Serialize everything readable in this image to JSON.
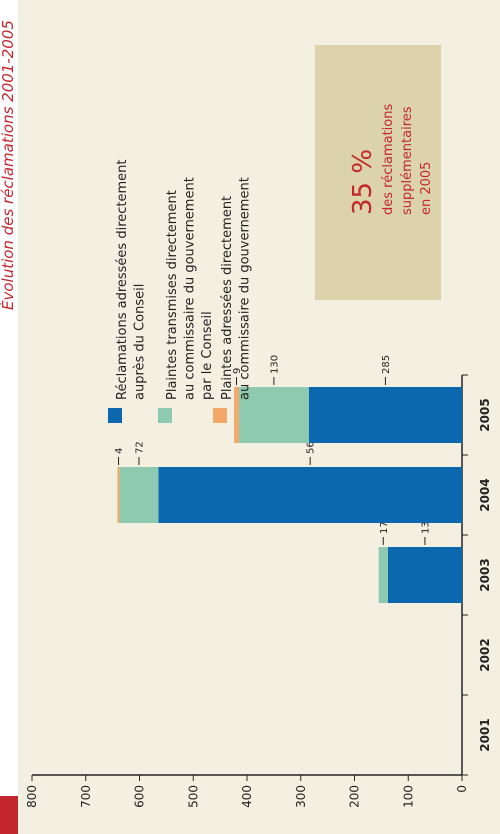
{
  "chart_data": {
    "type": "bar",
    "orientation": "horizontal",
    "stacked": true,
    "title": "Évolution des réclamations 2001-2005",
    "categories": [
      "2001",
      "2002",
      "2003",
      "2004",
      "2005"
    ],
    "series": [
      {
        "name": "Réclamations adressées directement\nauprès du Conseil",
        "color": "#0b67ae",
        "values": [
          null,
          null,
          138,
          565,
          285
        ]
      },
      {
        "name": "Plaintes transmises directement\nau commissaire du gouvernement\npar le Conseil",
        "color": "#8dcab0",
        "values": [
          null,
          null,
          17,
          72,
          130
        ]
      },
      {
        "name": "Plaintes adressées directement\nau commissaire du gouvernement",
        "color": "#f2a868",
        "values": [
          null,
          null,
          null,
          4,
          9
        ]
      }
    ],
    "xlim": [
      0,
      800
    ],
    "xticks": [
      0,
      100,
      200,
      300,
      400,
      500,
      600,
      700,
      800
    ],
    "annotations": {
      "highlight": "35 %",
      "text": "des réclamations\nsupplémentaires\nen 2005"
    }
  }
}
